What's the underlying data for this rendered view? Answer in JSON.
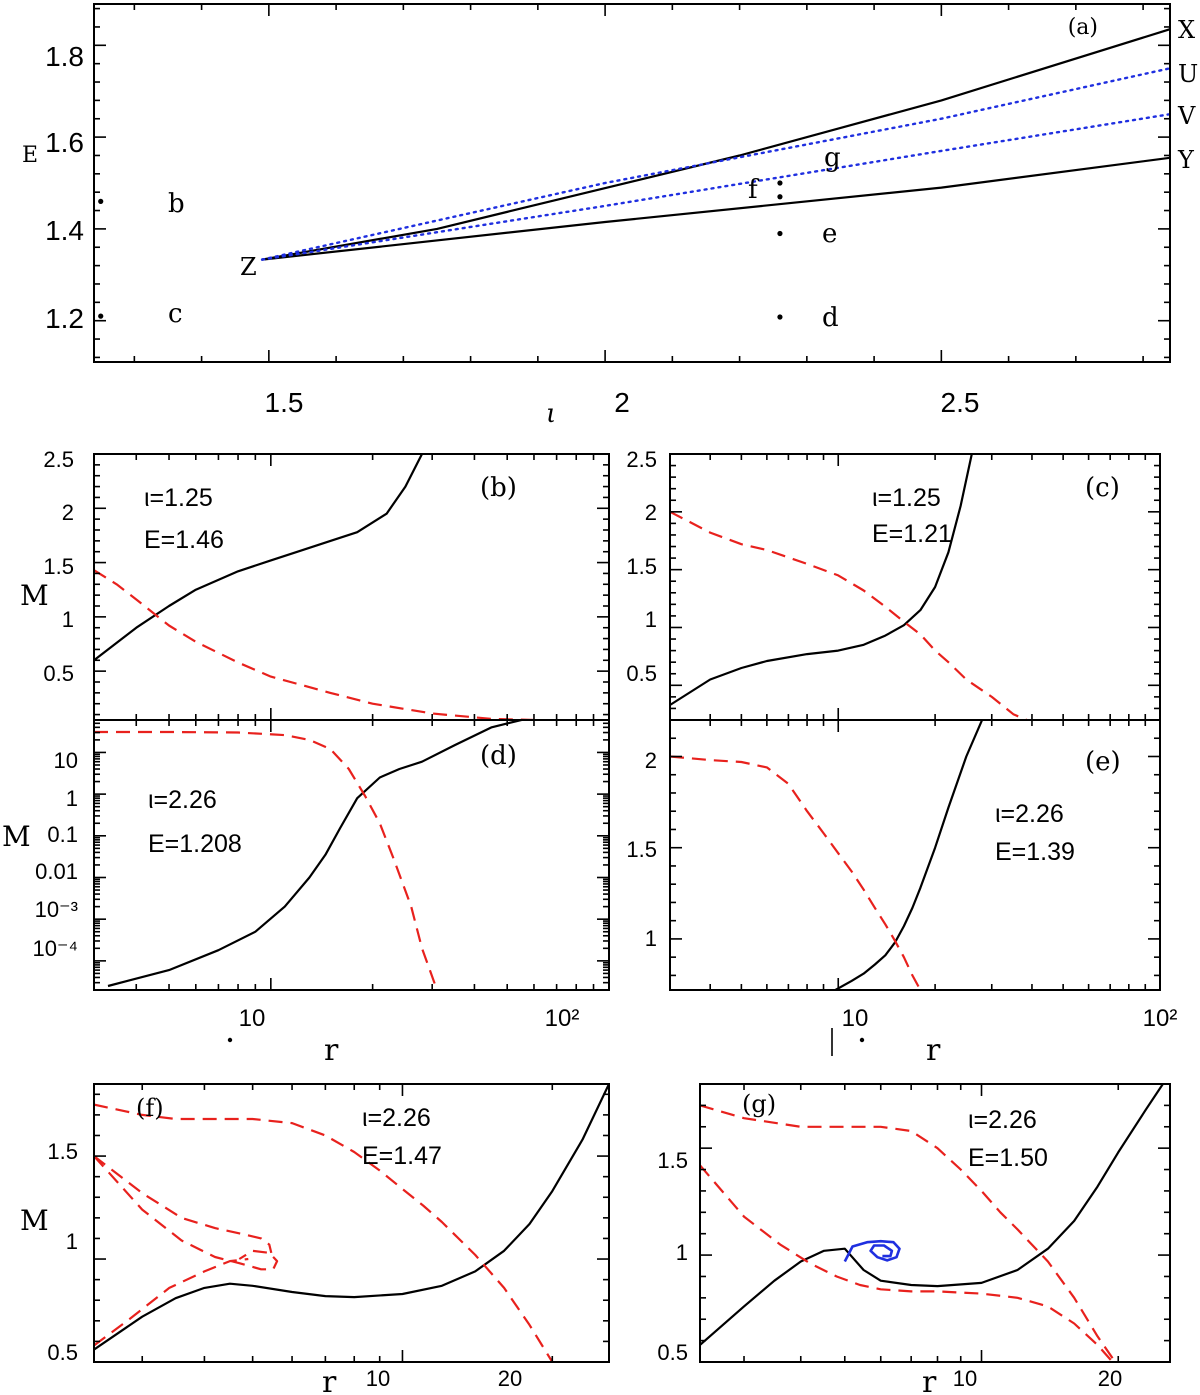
{
  "colors": {
    "solid": "#000000",
    "dashed": "#e8211d",
    "dotted": "#1f2fe0",
    "spiral": "#1f2fe0"
  },
  "chart_data": [
    {
      "panel": "a",
      "type": "line",
      "label": "(a)",
      "xlabel": "ι",
      "ylabel": "E",
      "xlim": [
        1.24,
        2.84
      ],
      "ylim": [
        1.11,
        1.89
      ],
      "xticks": [
        "1.5",
        "2",
        "2.5"
      ],
      "yticks": [
        "1.2",
        "1.4",
        "1.6",
        "1.8"
      ],
      "series": [
        {
          "name": "X",
          "style": "solid",
          "x": [
            1.49,
            1.75,
            2.2,
            2.5,
            2.84
          ],
          "y": [
            1.333,
            1.4,
            1.56,
            1.68,
            1.835
          ]
        },
        {
          "name": "Y",
          "style": "solid",
          "x": [
            1.49,
            2.0,
            2.5,
            2.84
          ],
          "y": [
            1.333,
            1.415,
            1.49,
            1.555
          ]
        },
        {
          "name": "U",
          "style": "dotted",
          "x": [
            1.49,
            2.0,
            2.5,
            2.84
          ],
          "y": [
            1.333,
            1.5,
            1.64,
            1.75
          ]
        },
        {
          "name": "V",
          "style": "dotted",
          "x": [
            1.49,
            2.0,
            2.5,
            2.84
          ],
          "y": [
            1.333,
            1.45,
            1.57,
            1.65
          ]
        }
      ],
      "curve_labels": [
        "X",
        "U",
        "V",
        "Y",
        "Z"
      ],
      "points": [
        {
          "label": "b",
          "x": 1.25,
          "y": 1.46
        },
        {
          "label": "c",
          "x": 1.25,
          "y": 1.21
        },
        {
          "label": "d",
          "x": 2.26,
          "y": 1.208
        },
        {
          "label": "e",
          "x": 2.26,
          "y": 1.39
        },
        {
          "label": "f",
          "x": 2.26,
          "y": 1.47
        },
        {
          "label": "g",
          "x": 2.26,
          "y": 1.5
        }
      ]
    },
    {
      "panel": "b",
      "type": "line",
      "label": "(b)",
      "ylabel": "M",
      "xscale": "log",
      "xlim": [
        3,
        100
      ],
      "ylim": [
        0.05,
        2.5
      ],
      "yticks": [
        "0.5",
        "1",
        "1.5",
        "2",
        "2.5"
      ],
      "annotations": [
        "ι=1.25",
        "E=1.46"
      ],
      "series": [
        {
          "style": "solid",
          "x": [
            3,
            4,
            5,
            6,
            8,
            10,
            12,
            15,
            18,
            22,
            25,
            28
          ],
          "y": [
            0.6,
            0.9,
            1.1,
            1.25,
            1.42,
            1.52,
            1.6,
            1.7,
            1.78,
            1.95,
            2.2,
            2.5
          ]
        },
        {
          "style": "dashed",
          "x": [
            3,
            3.5,
            4,
            5,
            6,
            8,
            10,
            15,
            20,
            30,
            45,
            60
          ],
          "y": [
            1.43,
            1.3,
            1.16,
            0.92,
            0.77,
            0.58,
            0.45,
            0.3,
            0.2,
            0.11,
            0.06,
            0.05
          ]
        }
      ]
    },
    {
      "panel": "c",
      "type": "line",
      "label": "(c)",
      "xscale": "log",
      "xlim": [
        3,
        100
      ],
      "ylim": [
        0.2,
        2.5
      ],
      "yticks": [
        "0.5",
        "1",
        "1.5",
        "2",
        "2.5"
      ],
      "annotations": [
        "ι=1.25",
        "E=1.21"
      ],
      "series": [
        {
          "style": "solid",
          "x": [
            3,
            4,
            5,
            6,
            8,
            10,
            12,
            14,
            16,
            18,
            20,
            22,
            24,
            26
          ],
          "y": [
            0.33,
            0.55,
            0.65,
            0.71,
            0.77,
            0.8,
            0.85,
            0.93,
            1.02,
            1.15,
            1.35,
            1.65,
            2.05,
            2.5
          ]
        },
        {
          "style": "dashed",
          "x": [
            3,
            4,
            5,
            6,
            8,
            10,
            12,
            14,
            16,
            18,
            20,
            22,
            25,
            30,
            35,
            40
          ],
          "y": [
            2.0,
            1.82,
            1.72,
            1.67,
            1.55,
            1.45,
            1.32,
            1.18,
            1.05,
            0.94,
            0.8,
            0.7,
            0.55,
            0.4,
            0.25,
            0.18
          ]
        }
      ]
    },
    {
      "panel": "d",
      "type": "line",
      "label": "(d)",
      "ylabel": "M",
      "xlabel": "r",
      "xscale": "log",
      "yscale": "log",
      "xlim": [
        3,
        100
      ],
      "ylim": [
        2e-05,
        60
      ],
      "xticks": [
        "10",
        "10²"
      ],
      "yticks": [
        "10",
        "1",
        "0.1",
        "0.01",
        "10⁻³",
        "10⁻⁴"
      ],
      "annotations": [
        "ι=2.26",
        "E=1.208"
      ],
      "series": [
        {
          "style": "solid",
          "x": [
            3.3,
            5,
            7,
            9,
            11,
            13,
            14.5,
            16,
            18,
            21,
            24,
            28,
            35,
            45,
            55,
            70
          ],
          "y": [
            2.5e-05,
            6e-05,
            0.00018,
            0.0005,
            0.002,
            0.01,
            0.035,
            0.15,
            0.8,
            2.5,
            4,
            6,
            15,
            40,
            60,
            80
          ]
        },
        {
          "style": "dashed",
          "x": [
            3,
            5,
            8,
            11,
            13,
            15,
            17,
            19,
            21,
            23,
            26,
            28,
            31
          ],
          "y": [
            31,
            31,
            30,
            26,
            20,
            12,
            4,
            0.9,
            0.2,
            0.03,
            0.002,
            0.0002,
            2e-05
          ]
        }
      ]
    },
    {
      "panel": "e",
      "type": "line",
      "label": "(e)",
      "xlabel": "r",
      "xscale": "log",
      "xlim": [
        3,
        100
      ],
      "ylim": [
        0.72,
        2.2
      ],
      "xticks": [
        "10",
        "10²"
      ],
      "yticks": [
        "1",
        "1.5",
        "2"
      ],
      "annotations": [
        "ι=2.26",
        "E=1.39"
      ],
      "series": [
        {
          "style": "solid",
          "x": [
            9.8,
            11,
            12,
            13,
            14,
            15,
            16,
            17,
            18,
            20,
            22,
            25,
            28
          ],
          "y": [
            0.72,
            0.77,
            0.81,
            0.86,
            0.91,
            0.98,
            1.07,
            1.17,
            1.28,
            1.5,
            1.72,
            2.0,
            2.2
          ]
        },
        {
          "style": "dashed",
          "x": [
            3,
            4,
            5,
            6,
            7,
            8,
            9,
            10,
            11,
            12,
            13,
            14,
            15,
            16,
            17,
            18
          ],
          "y": [
            2.0,
            1.98,
            1.97,
            1.94,
            1.85,
            1.7,
            1.58,
            1.47,
            1.37,
            1.27,
            1.17,
            1.08,
            0.99,
            0.9,
            0.8,
            0.72
          ]
        }
      ]
    },
    {
      "panel": "f",
      "type": "line",
      "label": "(f)",
      "ylabel": "M",
      "xlabel": "r",
      "xscale": "log",
      "xlim": [
        2.4,
        26
      ],
      "ylim": [
        0.5,
        1.85
      ],
      "xticks": [
        "10",
        "20"
      ],
      "yticks": [
        "0.5",
        "1",
        "1.5"
      ],
      "annotations": [
        "ι=2.26",
        "E=1.47"
      ],
      "series": [
        {
          "style": "solid",
          "x": [
            2.4,
            3,
            3.5,
            4,
            4.5,
            5,
            6,
            7,
            8,
            10,
            12,
            14,
            16,
            18,
            20,
            23,
            26
          ],
          "y": [
            0.56,
            0.72,
            0.81,
            0.86,
            0.88,
            0.87,
            0.84,
            0.82,
            0.815,
            0.83,
            0.87,
            0.94,
            1.04,
            1.17,
            1.33,
            1.58,
            1.85
          ]
        },
        {
          "style": "dashed",
          "x": [
            2.4,
            3,
            3.5,
            4,
            5,
            6,
            7,
            8,
            9,
            10,
            11,
            12,
            14,
            16,
            18,
            20
          ],
          "y": [
            1.75,
            1.7,
            1.68,
            1.68,
            1.68,
            1.66,
            1.6,
            1.52,
            1.43,
            1.34,
            1.26,
            1.18,
            1.02,
            0.86,
            0.68,
            0.5
          ]
        },
        {
          "style": "dashed",
          "x": [
            2.4,
            3,
            3.6,
            4.2,
            4.8,
            5.2,
            5.4,
            5.45
          ],
          "y": [
            1.5,
            1.32,
            1.2,
            1.15,
            1.12,
            1.1,
            1.07,
            1.03
          ]
        },
        {
          "style": "dashed",
          "x": [
            2.4,
            3,
            3.6,
            4.2,
            4.7,
            5.2,
            5.5,
            5.6,
            5.4,
            5.0,
            4.7
          ],
          "y": [
            1.5,
            1.24,
            1.09,
            1.01,
            0.98,
            0.95,
            0.95,
            0.99,
            1.03,
            1.04,
            1.0
          ]
        },
        {
          "style": "dashed",
          "x": [
            2.4,
            2.8,
            3.4,
            4.0,
            4.5,
            4.9
          ],
          "y": [
            0.58,
            0.7,
            0.86,
            0.94,
            0.99,
            1.0
          ]
        }
      ]
    },
    {
      "panel": "g",
      "type": "line",
      "label": "(g)",
      "xlabel": "r",
      "xscale": "log",
      "xlim": [
        2.4,
        26
      ],
      "ylim": [
        0.5,
        1.8
      ],
      "xticks": [
        "10",
        "20"
      ],
      "yticks": [
        "0.5",
        "1",
        "1.5"
      ],
      "annotations": [
        "ι=2.26",
        "E=1.50"
      ],
      "series": [
        {
          "style": "solid",
          "x": [
            2.4,
            3,
            3.5,
            4,
            4.5,
            5,
            5.5,
            6,
            7,
            8,
            10,
            12,
            14,
            16,
            18,
            20,
            23,
            26
          ],
          "y": [
            0.58,
            0.76,
            0.88,
            0.97,
            1.02,
            1.03,
            0.93,
            0.88,
            0.86,
            0.855,
            0.87,
            0.93,
            1.03,
            1.16,
            1.32,
            1.48,
            1.68,
            1.85
          ]
        },
        {
          "style": "dashed",
          "x": [
            2.4,
            3,
            4,
            5,
            6,
            7,
            8,
            9,
            10,
            11,
            12,
            14,
            16,
            18,
            20
          ],
          "y": [
            1.7,
            1.64,
            1.6,
            1.6,
            1.6,
            1.58,
            1.5,
            1.4,
            1.3,
            1.2,
            1.12,
            0.97,
            0.8,
            0.62,
            0.48
          ]
        },
        {
          "style": "dashed",
          "x": [
            2.4,
            3,
            3.6,
            4.2,
            4.8,
            5.4,
            6,
            7,
            8,
            10,
            12,
            14,
            16,
            18,
            20
          ],
          "y": [
            1.42,
            1.18,
            1.05,
            0.96,
            0.9,
            0.86,
            0.84,
            0.83,
            0.83,
            0.82,
            0.8,
            0.76,
            0.68,
            0.58,
            0.47
          ]
        },
        {
          "style": "spiral",
          "x": [
            5.0,
            5.2,
            5.6,
            6.0,
            6.4,
            6.6,
            6.5,
            6.2,
            5.9,
            5.7,
            5.8,
            6.1,
            6.35,
            6.3,
            6.05
          ],
          "y": [
            0.97,
            1.04,
            1.06,
            1.065,
            1.06,
            1.03,
            0.99,
            0.975,
            0.99,
            1.02,
            1.045,
            1.045,
            1.02,
            0.995,
            0.995
          ]
        }
      ]
    }
  ]
}
